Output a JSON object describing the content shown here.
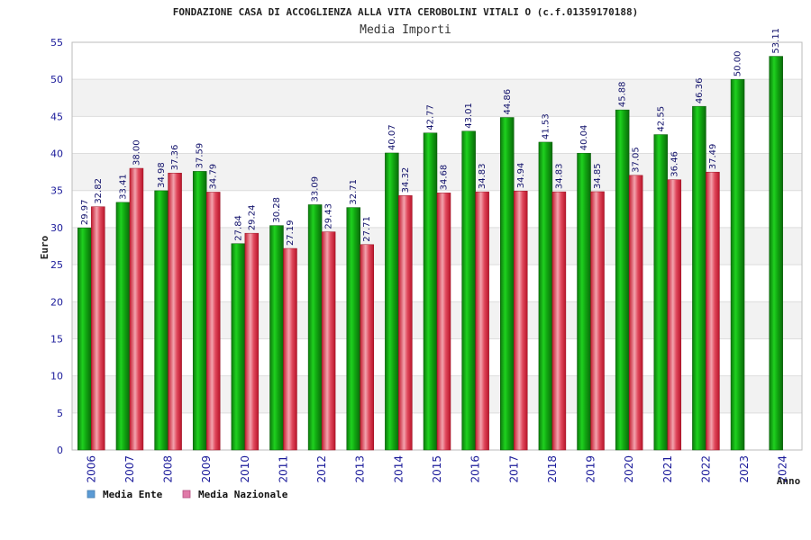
{
  "chart_data": {
    "type": "bar",
    "title": "FONDAZIONE CASA DI ACCOGLIENZA ALLA VITA CEROBOLINI VITALI O (c.f.01359170188)",
    "subtitle": "Media Importi",
    "xlabel": "Anno",
    "ylabel": "Euro",
    "ylim": [
      0,
      55
    ],
    "yticks": [
      0,
      5,
      10,
      15,
      20,
      25,
      30,
      35,
      40,
      45,
      50,
      55
    ],
    "grid": true,
    "legend_position": "bottom-left",
    "categories": [
      "2006",
      "2007",
      "2008",
      "2009",
      "2010",
      "2011",
      "2012",
      "2013",
      "2014",
      "2015",
      "2016",
      "2017",
      "2018",
      "2019",
      "2020",
      "2021",
      "2022",
      "2023",
      "2024"
    ],
    "series": [
      {
        "name": "Media Ente",
        "legend_color": "#5b9bd5",
        "bar_color": "#1db51d",
        "values": [
          29.97,
          33.41,
          34.98,
          37.59,
          27.84,
          30.28,
          33.09,
          32.71,
          40.07,
          42.77,
          43.01,
          44.86,
          41.53,
          40.04,
          45.88,
          42.55,
          46.36,
          50.0,
          53.11
        ],
        "labels": [
          "29.97",
          "33.41",
          "34.98",
          "37.59",
          "27.84",
          "30.28",
          "33.09",
          "32.71",
          "40.07",
          "42.77",
          "43.01",
          "44.86",
          "41.53",
          "40.04",
          "45.88",
          "42.55",
          "46.36",
          "50.00",
          "53.11"
        ]
      },
      {
        "name": "Media Nazionale",
        "legend_color": "#e07aa8",
        "bar_color": "#e8334a",
        "values": [
          32.82,
          38.0,
          37.36,
          34.79,
          29.24,
          27.19,
          29.43,
          27.71,
          34.32,
          34.68,
          34.83,
          34.94,
          34.83,
          34.85,
          37.05,
          36.46,
          37.49,
          null,
          null
        ],
        "labels": [
          "32.82",
          "38.00",
          "37.36",
          "34.79",
          "29.24",
          "27.19",
          "29.43",
          "27.71",
          "34.32",
          "34.68",
          "34.83",
          "34.94",
          "34.83",
          "34.85",
          "37.05",
          "36.46",
          "37.49",
          null,
          null
        ]
      }
    ]
  }
}
